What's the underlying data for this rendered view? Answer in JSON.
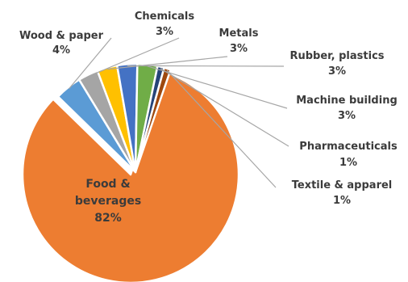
{
  "chart_data": {
    "type": "pie",
    "title": "",
    "slices": [
      {
        "label": "Food & beverages",
        "display_lines": [
          "Food &",
          "beverages",
          "82%"
        ],
        "value": 82,
        "color": "#ED7D31"
      },
      {
        "label": "Wood & paper",
        "display_lines": [
          "Wood & paper",
          "4%"
        ],
        "value": 4,
        "color": "#5B9BD5"
      },
      {
        "label": "Chemicals",
        "display_lines": [
          "Chemicals",
          "3%"
        ],
        "value": 3,
        "color": "#A5A5A5"
      },
      {
        "label": "Metals",
        "display_lines": [
          "Metals",
          "3%"
        ],
        "value": 3,
        "color": "#FFC000"
      },
      {
        "label": "Rubber, plastics",
        "display_lines": [
          "Rubber, plastics",
          "3%"
        ],
        "value": 3,
        "color": "#4472C4"
      },
      {
        "label": "Machine building",
        "display_lines": [
          "Machine building",
          "3%"
        ],
        "value": 3,
        "color": "#70AD47"
      },
      {
        "label": "Pharmaceuticals",
        "display_lines": [
          "Pharmaceuticals",
          "1%"
        ],
        "value": 1,
        "color": "#264478"
      },
      {
        "label": "Textile & apparel",
        "display_lines": [
          "Textile & apparel",
          "1%"
        ],
        "value": 1,
        "color": "#9E480E"
      }
    ],
    "exploded_slice": "Food & beverages",
    "legend": "none",
    "label_style": "callout-with-leader-lines"
  }
}
